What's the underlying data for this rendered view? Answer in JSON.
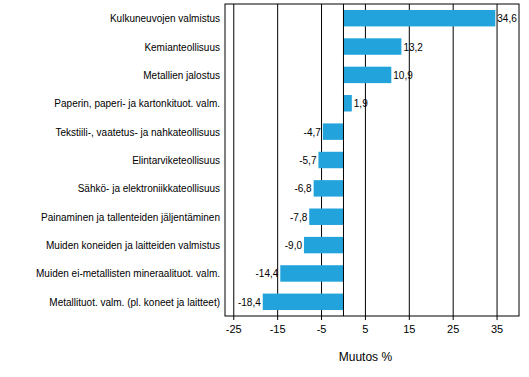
{
  "chart_data": {
    "type": "bar",
    "orientation": "horizontal",
    "x_label": "Muutos %",
    "categories": [
      "Kulkuneuvojen valmistus",
      "Kemianteollisuus",
      "Metallien jalostus",
      "Paperin, paperi- ja kartonkituot. valm.",
      "Tekstiili-, vaatetus- ja nahkateollisuus",
      "Elintarviketeollisuus",
      "Sähkö- ja elektroniikkateollisuus",
      "Painaminen ja tallenteiden jäljentäminen",
      "Muiden koneiden ja laitteiden valmistus",
      "Muiden ei-metallisten mineraalituot. valm.",
      "Metallituot. valm. (pl. koneet ja laitteet)"
    ],
    "values": [
      34.6,
      13.2,
      10.9,
      1.9,
      -4.7,
      -5.7,
      -6.8,
      -7.8,
      -9.0,
      -14.4,
      -18.4
    ],
    "value_labels": [
      "34,6",
      "13,2",
      "10,9",
      "1,9",
      "-4,7",
      "-5,7",
      "-6,8",
      "-7,8",
      "-9,0",
      "-14,4",
      "-18,4"
    ],
    "data_labels": true,
    "color": "#22a3dc",
    "xlim": [
      -27,
      40
    ],
    "xticks": [
      -25,
      -15,
      -5,
      5,
      15,
      25,
      35
    ],
    "grid": true
  }
}
